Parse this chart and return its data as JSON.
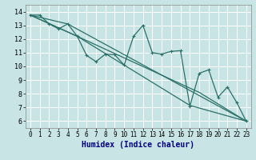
{
  "xlabel": "Humidex (Indice chaleur)",
  "xlim": [
    -0.5,
    23.5
  ],
  "ylim": [
    5.5,
    14.5
  ],
  "xticks": [
    0,
    1,
    2,
    3,
    4,
    5,
    6,
    7,
    8,
    9,
    10,
    11,
    12,
    13,
    14,
    15,
    16,
    17,
    18,
    19,
    20,
    21,
    22,
    23
  ],
  "yticks": [
    6,
    7,
    8,
    9,
    10,
    11,
    12,
    13,
    14
  ],
  "bg_color": "#c8e4e4",
  "grid_color": "#ffffff",
  "line_color": "#2a7068",
  "line1_x": [
    0,
    1,
    2,
    3,
    4,
    5,
    6,
    7,
    8,
    9,
    10,
    11,
    12,
    13,
    14,
    15,
    16,
    17,
    18,
    19,
    20,
    21,
    22,
    23
  ],
  "line1_y": [
    13.75,
    13.75,
    13.1,
    12.75,
    13.1,
    12.2,
    10.8,
    10.35,
    10.9,
    10.85,
    10.1,
    12.2,
    13.0,
    11.0,
    10.9,
    11.1,
    11.15,
    7.1,
    9.5,
    9.75,
    7.75,
    8.5,
    7.35,
    6.0
  ],
  "line2_x": [
    0,
    4,
    23
  ],
  "line2_y": [
    13.75,
    13.1,
    6.0
  ],
  "line3_x": [
    0,
    5,
    17,
    23
  ],
  "line3_y": [
    13.75,
    12.2,
    7.15,
    6.0
  ],
  "line4_x": [
    0,
    5,
    18,
    23
  ],
  "line4_y": [
    13.75,
    12.2,
    8.1,
    6.0
  ],
  "xlabel_color": "#000080",
  "xlabel_fontsize": 7,
  "xlabel_bold": true,
  "tick_fontsize": 5.5,
  "lw": 0.9
}
